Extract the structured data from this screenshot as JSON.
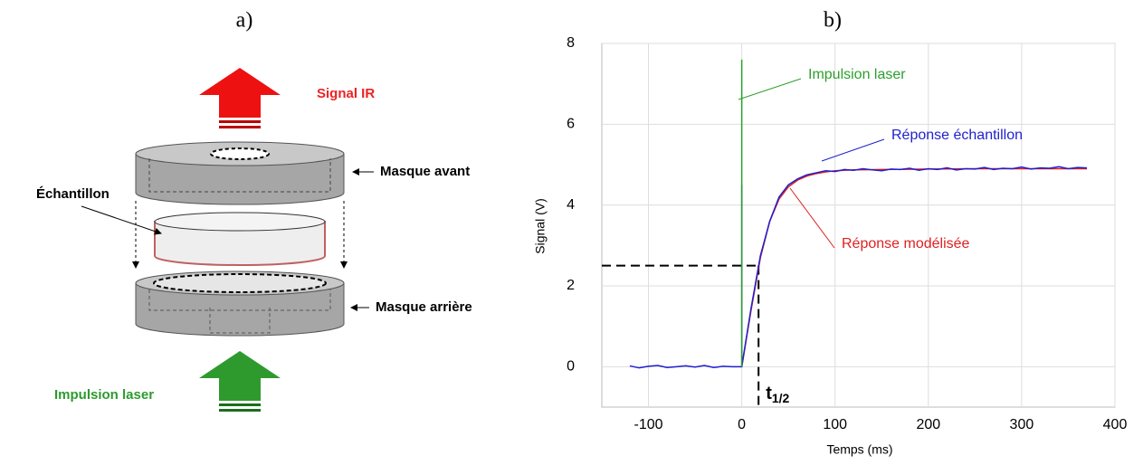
{
  "diagram": {
    "label": "a)",
    "signal": "Signal IR",
    "front_mask": "Masque avant",
    "sample": "Échantillon",
    "rear_mask": "Masque arrière",
    "pulse": "Impulsion laser"
  },
  "chart_data": {
    "type": "line",
    "label": "b)",
    "xlabel": "Temps (ms)",
    "ylabel": "Signal (V)",
    "xlim": [
      -150,
      400
    ],
    "ylim": [
      -1,
      8
    ],
    "xticks": [
      -100,
      0,
      100,
      200,
      300,
      400
    ],
    "yticks": [
      0,
      2,
      4,
      6,
      8
    ],
    "grid": true,
    "series": [
      {
        "name": "Impulsion laser",
        "color": "#2ca02c",
        "x": [
          0,
          0
        ],
        "values": [
          0,
          7.6
        ]
      },
      {
        "name": "Réponse échantillon",
        "color": "#1f1fcf",
        "x": [
          -120,
          -110,
          -100,
          -90,
          -80,
          -70,
          -60,
          -50,
          -40,
          -30,
          -20,
          -10,
          0,
          0,
          0,
          10,
          20,
          30,
          40,
          50,
          60,
          70,
          80,
          90,
          100,
          110,
          120,
          130,
          140,
          150,
          160,
          170,
          180,
          190,
          200,
          210,
          220,
          230,
          240,
          250,
          260,
          270,
          280,
          290,
          300,
          310,
          320,
          330,
          340,
          350,
          360,
          370
        ],
        "values": [
          0.02,
          -0.03,
          0.01,
          0.03,
          -0.02,
          0,
          0.02,
          -0.01,
          0.03,
          -0.02,
          0.01,
          0,
          0,
          4.5,
          0,
          1.45,
          2.75,
          3.6,
          4.2,
          4.5,
          4.65,
          4.75,
          4.8,
          4.85,
          4.83,
          4.88,
          4.86,
          4.9,
          4.87,
          4.85,
          4.89,
          4.88,
          4.91,
          4.86,
          4.9,
          4.88,
          4.92,
          4.87,
          4.9,
          4.89,
          4.93,
          4.88,
          4.91,
          4.9,
          4.94,
          4.89,
          4.92,
          4.91,
          4.95,
          4.9,
          4.93,
          4.92
        ]
      },
      {
        "name": "Réponse modélisée",
        "color": "#e02020",
        "x": [
          0,
          10,
          20,
          30,
          40,
          50,
          60,
          70,
          80,
          90,
          100,
          120,
          150,
          200,
          250,
          300,
          370
        ],
        "values": [
          0,
          1.4,
          2.7,
          3.6,
          4.15,
          4.45,
          4.62,
          4.72,
          4.78,
          4.82,
          4.85,
          4.87,
          4.88,
          4.89,
          4.9,
          4.9,
          4.9
        ]
      }
    ],
    "half_time": {
      "x": 18,
      "y": 2.5,
      "label": "t",
      "subscript": "1/2"
    }
  }
}
